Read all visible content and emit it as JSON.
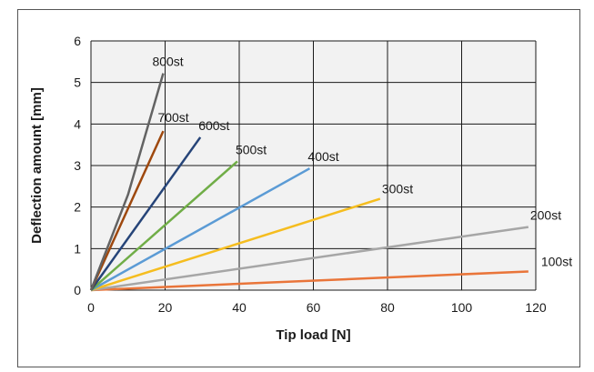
{
  "chart_data": {
    "type": "line",
    "title": "",
    "xlabel": "Tip load [N]",
    "ylabel": "Deflection amount [mm]",
    "xlim": [
      0,
      120
    ],
    "ylim": [
      0,
      6
    ],
    "xticks": [
      "0",
      "20",
      "40",
      "60",
      "80",
      "100",
      "120"
    ],
    "yticks": [
      "0",
      "1",
      "2",
      "3",
      "4",
      "5",
      "6"
    ],
    "grid": true,
    "legend": "inline labels at line ends",
    "series": [
      {
        "name": "100st",
        "color": "#e9753a",
        "points": [
          [
            0,
            0
          ],
          [
            118,
            0.45
          ]
        ]
      },
      {
        "name": "200st",
        "color": "#a6a6a6",
        "points": [
          [
            0,
            0
          ],
          [
            118,
            1.52
          ]
        ]
      },
      {
        "name": "300st",
        "color": "#f5bd1f",
        "points": [
          [
            0,
            0
          ],
          [
            78,
            2.2
          ]
        ]
      },
      {
        "name": "400st",
        "color": "#5b9bd5",
        "points": [
          [
            0,
            0
          ],
          [
            59,
            2.93
          ]
        ]
      },
      {
        "name": "500st",
        "color": "#70ad47",
        "points": [
          [
            0,
            0
          ],
          [
            39.5,
            3.1
          ]
        ]
      },
      {
        "name": "600st",
        "color": "#264478",
        "points": [
          [
            0,
            0
          ],
          [
            29.5,
            3.68
          ]
        ]
      },
      {
        "name": "700st",
        "color": "#9e480e",
        "points": [
          [
            0,
            0
          ],
          [
            19.5,
            3.83
          ]
        ]
      },
      {
        "name": "800st",
        "color": "#636363",
        "points": [
          [
            0,
            0
          ],
          [
            10,
            2.3
          ],
          [
            19.5,
            5.22
          ]
        ]
      }
    ]
  }
}
